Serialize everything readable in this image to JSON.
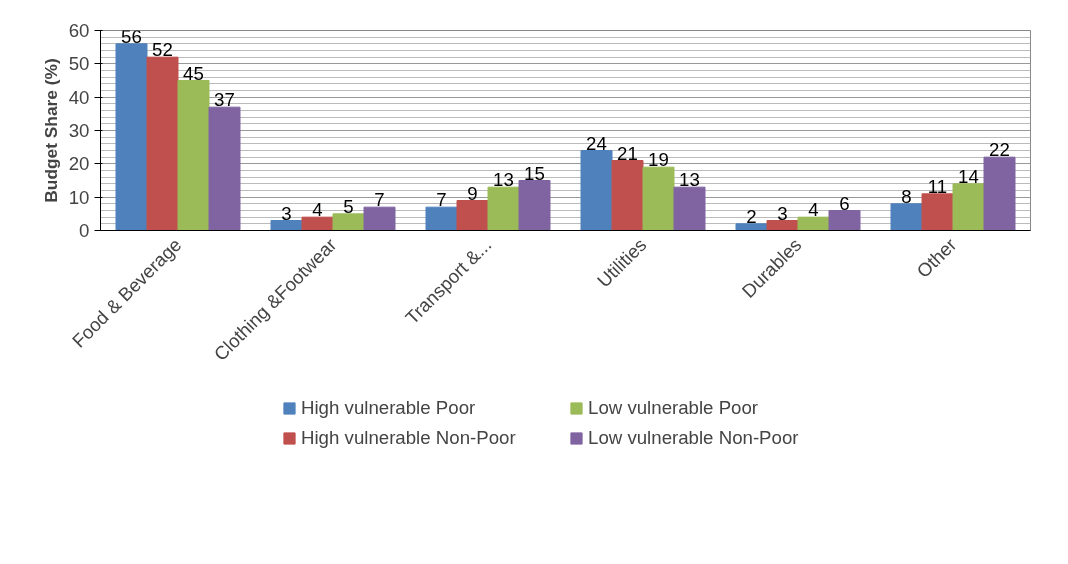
{
  "chart_data": {
    "type": "bar",
    "ylabel": "Budget Share (%)",
    "categories": [
      "Food & Beverage",
      "Clothing &Footwear",
      "Transport &...",
      "Utilities",
      "Durables",
      "Other"
    ],
    "series": [
      {
        "name": "High vulnerable Poor",
        "color": "#4f81bd",
        "values": [
          56,
          3,
          7,
          24,
          2,
          8
        ]
      },
      {
        "name": "High vulnerable Non-Poor",
        "color": "#c0504d",
        "values": [
          52,
          4,
          9,
          21,
          3,
          11
        ]
      },
      {
        "name": "Low vulnerable Poor",
        "color": "#9bbb59",
        "values": [
          45,
          5,
          13,
          19,
          4,
          14
        ]
      },
      {
        "name": "Low vulnerable Non-Poor",
        "color": "#8064a2",
        "values": [
          37,
          7,
          15,
          13,
          6,
          22
        ]
      }
    ],
    "ylim": [
      0,
      60
    ],
    "yticks": [
      0,
      10,
      20,
      30,
      40,
      50,
      60
    ],
    "grid": "y",
    "legend": "bottom",
    "data_labels": true
  }
}
